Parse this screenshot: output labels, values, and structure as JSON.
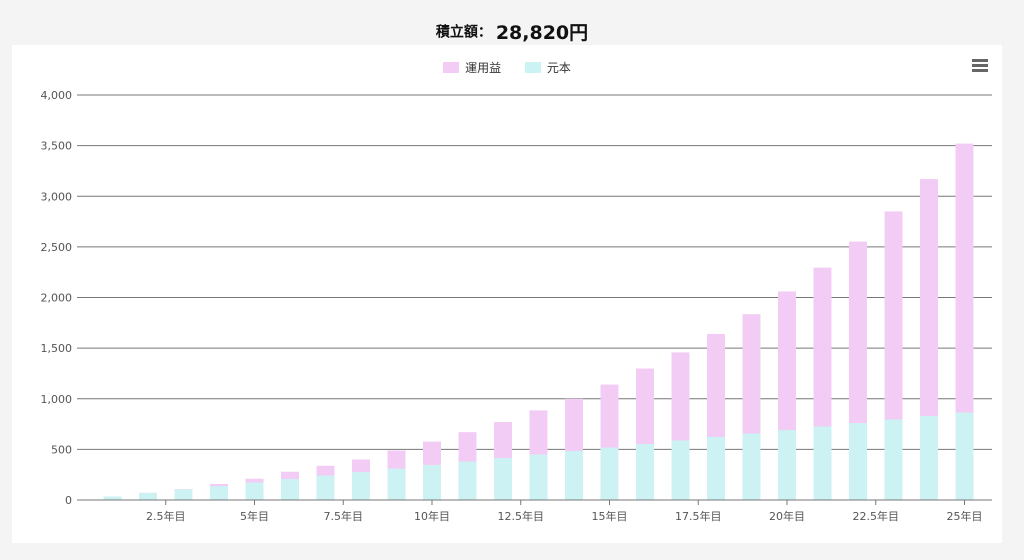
{
  "header": {
    "label": "積立額：",
    "value": "28,820円"
  },
  "legend": [
    {
      "name": "運用益",
      "color": "#f2ccf5"
    },
    {
      "name": "元本",
      "color": "#ccf2f3"
    }
  ],
  "menu": {
    "icon": "hamburger-menu-icon"
  },
  "chart_data": {
    "type": "bar",
    "stacked": true,
    "title": "",
    "xlabel": "",
    "ylabel": "",
    "ylim": [
      0,
      4000
    ],
    "y_ticks": [
      "0",
      "500",
      "1,000",
      "1,500",
      "2,000",
      "2,500",
      "3,000",
      "3,500",
      "4,000"
    ],
    "y_tick_values": [
      0,
      500,
      1000,
      1500,
      2000,
      2500,
      3000,
      3500,
      4000
    ],
    "x_tick_labels": [
      "2.5年目",
      "5年目",
      "7.5年目",
      "10年目",
      "12.5年目",
      "15年目",
      "17.5年目",
      "20年目",
      "22.5年目",
      "25年目"
    ],
    "x_tick_years": [
      2.5,
      5,
      7.5,
      10,
      12.5,
      15,
      17.5,
      20,
      22.5,
      25
    ],
    "categories": [
      1,
      2,
      3,
      4,
      5,
      6,
      7,
      8,
      9,
      10,
      11,
      12,
      13,
      14,
      15,
      16,
      17,
      18,
      19,
      20,
      21,
      22,
      23,
      24,
      25
    ],
    "grid": true,
    "legend_position": "top-center",
    "series": [
      {
        "name": "元本",
        "color": "#ccf2f3",
        "values": [
          35,
          69,
          104,
          138,
          173,
          207,
          242,
          276,
          311,
          346,
          380,
          415,
          449,
          484,
          518,
          553,
          588,
          622,
          657,
          691,
          726,
          760,
          795,
          830,
          864
        ]
      },
      {
        "name": "運用益",
        "color": "#f2ccf5",
        "values": [
          0,
          2,
          3,
          20,
          37,
          72,
          96,
          124,
          178,
          230,
          290,
          355,
          436,
          516,
          622,
          745,
          870,
          1018,
          1178,
          1369,
          1569,
          1792,
          2055,
          2340,
          2656
        ]
      }
    ]
  }
}
